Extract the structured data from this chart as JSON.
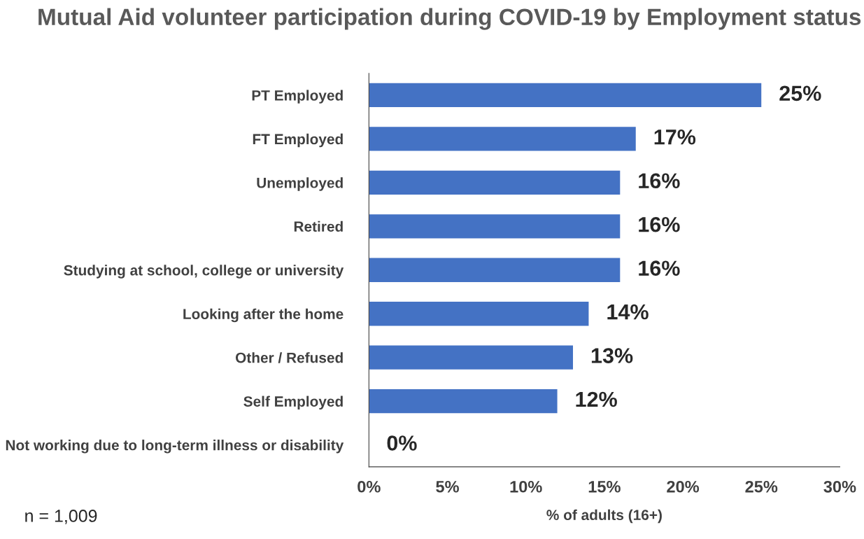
{
  "chart_data": {
    "type": "bar",
    "orientation": "horizontal",
    "title": "Mutual Aid volunteer participation during COVID-19 by Employment status",
    "xlabel": "% of adults (16+)",
    "categories": [
      "PT Employed",
      "FT Employed",
      "Unemployed",
      "Retired",
      "Studying at school, college or university",
      "Looking after the home",
      "Other / Refused",
      "Self Employed",
      "Not working due to long-term illness or disability"
    ],
    "values": [
      25,
      17,
      16,
      16,
      16,
      14,
      13,
      12,
      0
    ],
    "value_labels": [
      "25%",
      "17%",
      "16%",
      "16%",
      "16%",
      "14%",
      "13%",
      "12%",
      "0%"
    ],
    "color": "#4472c4",
    "xlim": [
      0,
      30
    ],
    "xticks": [
      {
        "value": 0,
        "label": "0%"
      },
      {
        "value": 5,
        "label": "5%"
      },
      {
        "value": 10,
        "label": "10%"
      },
      {
        "value": 15,
        "label": "15%"
      },
      {
        "value": 20,
        "label": "20%"
      },
      {
        "value": 25,
        "label": "25%"
      },
      {
        "value": 30,
        "label": "30%"
      }
    ],
    "grid": false,
    "legend": false,
    "annotations": [
      "n = 1,009"
    ]
  }
}
